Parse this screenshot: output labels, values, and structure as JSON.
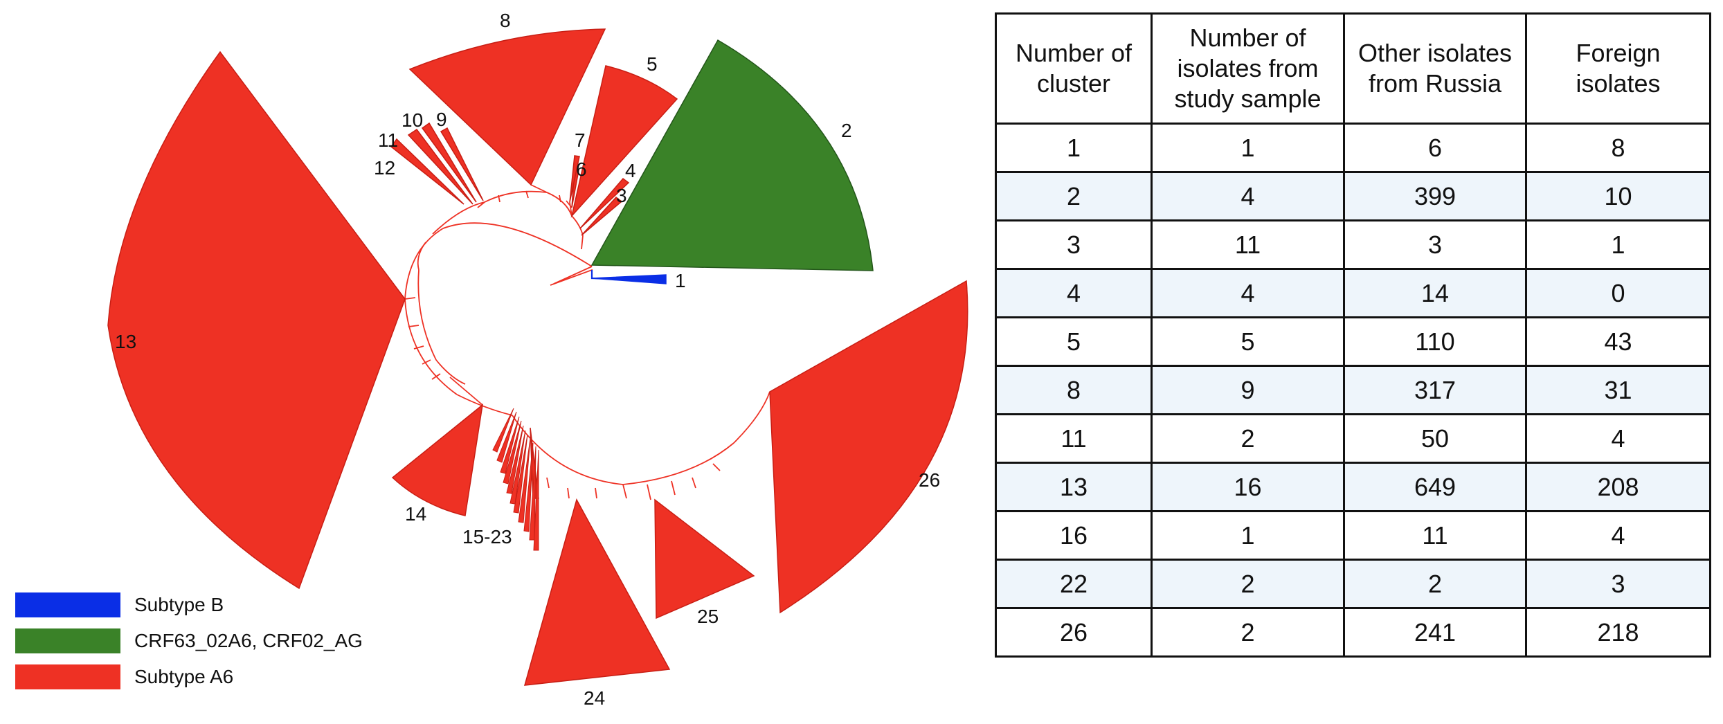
{
  "figure": {
    "clusters": [
      {
        "label": "1",
        "group": "subtype_b"
      },
      {
        "label": "2",
        "group": "crf"
      },
      {
        "label": "3",
        "group": "a6"
      },
      {
        "label": "4",
        "group": "a6"
      },
      {
        "label": "5",
        "group": "a6"
      },
      {
        "label": "6",
        "group": "a6"
      },
      {
        "label": "7",
        "group": "a6"
      },
      {
        "label": "8",
        "group": "a6"
      },
      {
        "label": "9",
        "group": "a6"
      },
      {
        "label": "10",
        "group": "a6"
      },
      {
        "label": "11",
        "group": "a6"
      },
      {
        "label": "12",
        "group": "a6"
      },
      {
        "label": "13",
        "group": "a6"
      },
      {
        "label": "14",
        "group": "a6"
      },
      {
        "label": "15-23",
        "group": "a6"
      },
      {
        "label": "24",
        "group": "a6"
      },
      {
        "label": "25",
        "group": "a6"
      },
      {
        "label": "26",
        "group": "a6"
      }
    ],
    "colors": {
      "subtype_b": "#0a2ee6",
      "crf": "#3a8228",
      "a6": "#ee3124",
      "a6_edge": "#c81e14",
      "crf_edge": "#23561a"
    },
    "legend": [
      {
        "label": "Subtype B",
        "color": "#0a2ee6"
      },
      {
        "label": "CRF63_02A6, CRF02_AG",
        "color": "#3a8228"
      },
      {
        "label": "Subtype A6",
        "color": "#ee3124"
      }
    ]
  },
  "table": {
    "headers": [
      "Number of cluster",
      "Number of isolates from study sample",
      "Other isolates from Russia",
      "Foreign isolates"
    ],
    "rows": [
      [
        "1",
        "1",
        "6",
        "8"
      ],
      [
        "2",
        "4",
        "399",
        "10"
      ],
      [
        "3",
        "11",
        "3",
        "1"
      ],
      [
        "4",
        "4",
        "14",
        "0"
      ],
      [
        "5",
        "5",
        "110",
        "43"
      ],
      [
        "8",
        "9",
        "317",
        "31"
      ],
      [
        "11",
        "2",
        "50",
        "4"
      ],
      [
        "13",
        "16",
        "649",
        "208"
      ],
      [
        "16",
        "1",
        "11",
        "4"
      ],
      [
        "22",
        "2",
        "2",
        "3"
      ],
      [
        "26",
        "2",
        "241",
        "218"
      ]
    ]
  }
}
